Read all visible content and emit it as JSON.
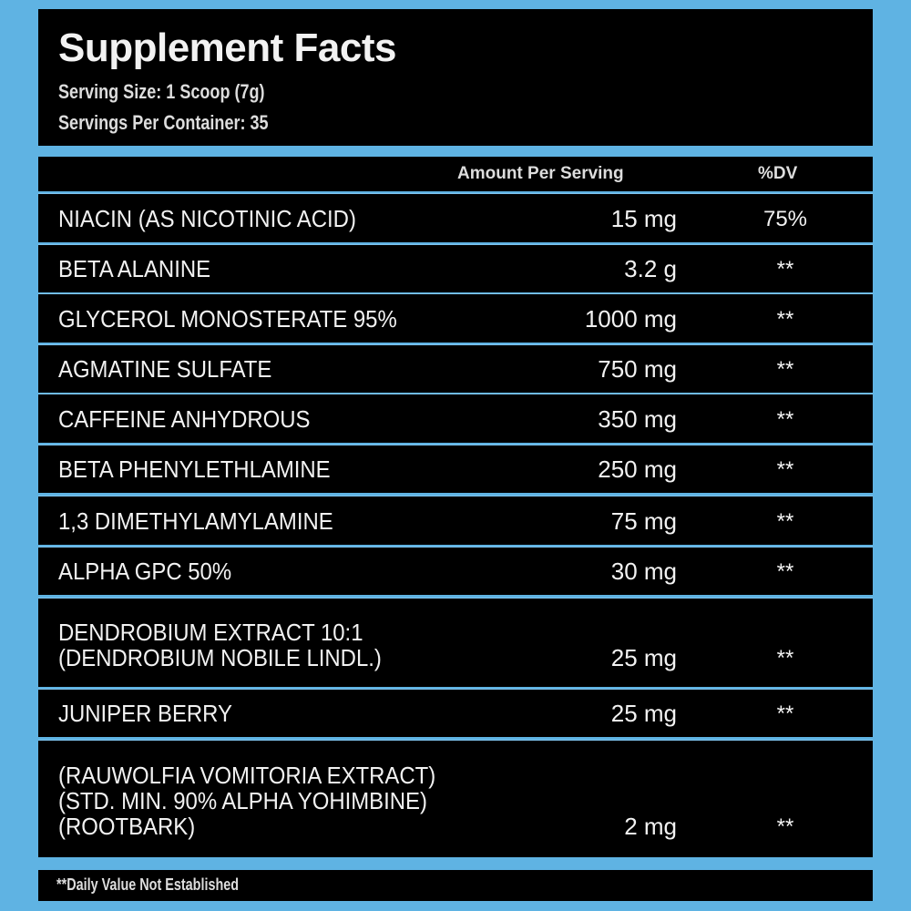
{
  "title": "Supplement Facts",
  "serving_size": "Serving Size: 1 Scoop (7g)",
  "servings_per_container": "Servings Per Container: 35",
  "columns": {
    "amount": "Amount Per Serving",
    "dv": "%DV"
  },
  "rows": [
    {
      "name": "NIACIN (AS NICOTINIC ACID)",
      "amount": "15 mg",
      "dv": "75%"
    },
    {
      "name": "BETA ALANINE",
      "amount": "3.2 g",
      "dv": "**"
    },
    {
      "name": "GLYCEROL MONOSTERATE 95%",
      "amount": "1000 mg",
      "dv": "**"
    },
    {
      "name": "AGMATINE SULFATE",
      "amount": "750 mg",
      "dv": "**"
    },
    {
      "name": "CAFFEINE ANHYDROUS",
      "amount": "350 mg",
      "dv": "**"
    },
    {
      "name": "BETA PHENYLETHLAMINE",
      "amount": "250 mg",
      "dv": "**"
    },
    {
      "name": "1,3 DIMETHYLAMYLAMINE",
      "amount": "75 mg",
      "dv": "**"
    },
    {
      "name": "ALPHA GPC 50%",
      "amount": "30 mg",
      "dv": "**"
    },
    {
      "name": "DENDROBIUM EXTRACT 10:1\n(DENDROBIUM NOBILE LINDL.)",
      "amount": "25 mg",
      "dv": "**"
    },
    {
      "name": "JUNIPER BERRY",
      "amount": "25 mg",
      "dv": "**"
    },
    {
      "name": "(RAUWOLFIA VOMITORIA EXTRACT)\n(STD. MIN. 90% ALPHA YOHIMBINE)\n(ROOTBARK)",
      "amount": "2 mg",
      "dv": "**"
    }
  ],
  "footnote": "**Daily Value Not Established",
  "colors": {
    "background": "#5fb3e3",
    "panel": "#000000",
    "text": "#f2f2f2"
  }
}
